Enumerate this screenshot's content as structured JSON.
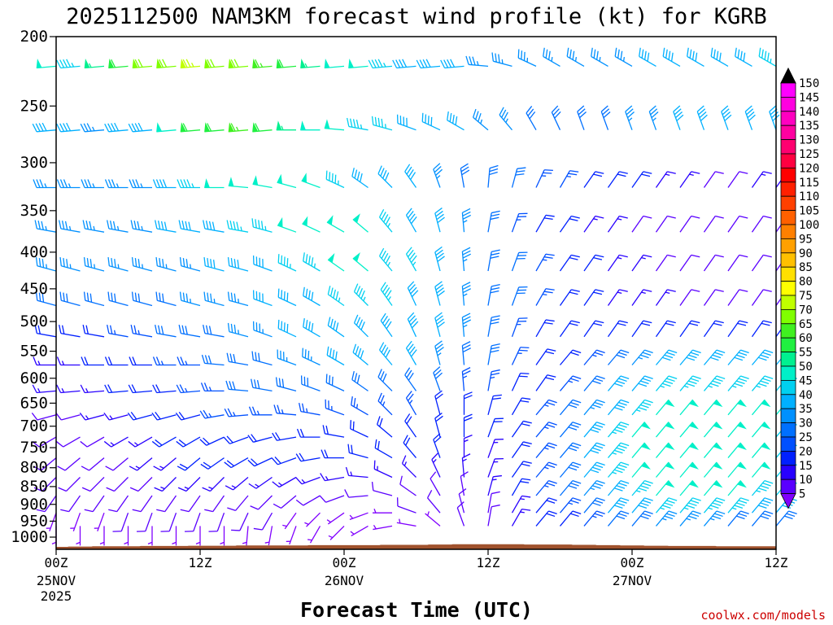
{
  "chart_data": {
    "type": "wind-barb time-height section",
    "title": "2025112500 NAM3KM forecast wind profile (kt) for KGRB",
    "xlabel": "Forecast Time (UTC)",
    "ylabel": "",
    "x_range_hours": [
      0,
      60
    ],
    "y_axis": {
      "scale": "log-pressure",
      "range_hPa": [
        1040,
        200
      ],
      "tick_values": [
        200,
        250,
        300,
        350,
        400,
        450,
        500,
        550,
        600,
        650,
        700,
        750,
        800,
        850,
        900,
        950,
        1000
      ],
      "tick_labels": [
        "200",
        "250",
        "300",
        "350",
        "400",
        "450",
        "500",
        "550",
        "600",
        "650",
        "700",
        "750",
        "800",
        "850",
        "900",
        "950",
        "1000"
      ]
    },
    "x_ticks": [
      {
        "hour": 0,
        "label": "00Z",
        "sub1": "25NOV",
        "sub2": "2025"
      },
      {
        "hour": 12,
        "label": "12Z",
        "sub1": "",
        "sub2": ""
      },
      {
        "hour": 24,
        "label": "00Z",
        "sub1": "26NOV",
        "sub2": ""
      },
      {
        "hour": 36,
        "label": "12Z",
        "sub1": "",
        "sub2": ""
      },
      {
        "hour": 48,
        "label": "00Z",
        "sub1": "27NOV",
        "sub2": ""
      },
      {
        "hour": 60,
        "label": "12Z",
        "sub1": "",
        "sub2": ""
      }
    ],
    "levels_hPa": [
      220,
      270,
      325,
      375,
      425,
      475,
      525,
      575,
      625,
      675,
      725,
      775,
      825,
      875,
      925,
      965
    ],
    "lead_hours": [
      0,
      2,
      4,
      6,
      8,
      10,
      12,
      14,
      16,
      18,
      20,
      22,
      24,
      26,
      28,
      30,
      32,
      34,
      36,
      38,
      40,
      42,
      44,
      46,
      48,
      50,
      52,
      54,
      56,
      58,
      60
    ],
    "wind_speed_kt": [
      [
        48,
        45,
        55,
        62,
        68,
        72,
        74,
        72,
        68,
        64,
        60,
        56,
        52,
        48,
        44,
        42,
        40,
        38,
        36,
        36,
        36,
        36,
        36,
        36,
        36,
        38,
        40,
        40,
        40,
        42,
        44
      ],
      [
        40,
        38,
        36,
        38,
        42,
        50,
        58,
        62,
        64,
        60,
        56,
        52,
        48,
        46,
        44,
        42,
        40,
        38,
        36,
        34,
        32,
        30,
        30,
        32,
        34,
        36,
        38,
        38,
        38,
        38,
        38
      ],
      [
        36,
        35,
        34,
        34,
        36,
        40,
        46,
        50,
        52,
        52,
        50,
        48,
        46,
        42,
        40,
        38,
        35,
        32,
        30,
        28,
        26,
        24,
        22,
        20,
        18,
        16,
        14,
        12,
        12,
        14,
        16
      ],
      [
        35,
        34,
        34,
        34,
        36,
        38,
        40,
        42,
        44,
        46,
        48,
        50,
        50,
        48,
        46,
        42,
        38,
        34,
        30,
        26,
        22,
        18,
        16,
        14,
        12,
        10,
        10,
        10,
        12,
        12,
        12
      ],
      [
        34,
        34,
        33,
        33,
        34,
        35,
        36,
        38,
        40,
        42,
        44,
        46,
        48,
        48,
        46,
        44,
        40,
        36,
        32,
        28,
        24,
        20,
        18,
        16,
        14,
        12,
        10,
        10,
        10,
        10,
        10
      ],
      [
        30,
        30,
        30,
        30,
        31,
        32,
        33,
        34,
        36,
        38,
        40,
        42,
        44,
        44,
        44,
        42,
        40,
        36,
        32,
        28,
        24,
        20,
        18,
        16,
        16,
        14,
        12,
        12,
        12,
        12,
        12
      ],
      [
        18,
        20,
        22,
        24,
        26,
        28,
        30,
        32,
        34,
        36,
        38,
        40,
        42,
        42,
        42,
        40,
        38,
        34,
        30,
        26,
        22,
        18,
        18,
        18,
        18,
        18,
        18,
        18,
        18,
        18,
        18
      ],
      [
        16,
        16,
        18,
        20,
        22,
        24,
        26,
        28,
        30,
        32,
        34,
        36,
        38,
        40,
        40,
        38,
        36,
        32,
        28,
        24,
        20,
        20,
        24,
        30,
        34,
        38,
        40,
        42,
        42,
        42,
        42
      ],
      [
        14,
        14,
        16,
        18,
        20,
        22,
        24,
        26,
        28,
        30,
        32,
        32,
        32,
        32,
        32,
        30,
        28,
        26,
        24,
        22,
        20,
        26,
        32,
        38,
        42,
        44,
        46,
        46,
        46,
        46,
        46
      ],
      [
        12,
        12,
        14,
        16,
        18,
        20,
        22,
        24,
        26,
        26,
        26,
        26,
        26,
        26,
        26,
        24,
        22,
        20,
        18,
        20,
        24,
        30,
        36,
        42,
        46,
        48,
        50,
        50,
        50,
        48,
        48
      ],
      [
        12,
        12,
        12,
        14,
        16,
        18,
        20,
        22,
        22,
        22,
        22,
        22,
        22,
        22,
        22,
        22,
        20,
        18,
        18,
        20,
        24,
        30,
        38,
        44,
        48,
        50,
        52,
        52,
        50,
        48,
        46
      ],
      [
        10,
        10,
        10,
        12,
        14,
        16,
        18,
        18,
        18,
        18,
        18,
        18,
        18,
        18,
        18,
        18,
        18,
        16,
        16,
        20,
        26,
        32,
        38,
        44,
        48,
        50,
        52,
        52,
        50,
        48,
        46
      ],
      [
        10,
        10,
        10,
        10,
        12,
        14,
        16,
        16,
        16,
        14,
        14,
        14,
        14,
        14,
        14,
        14,
        14,
        14,
        16,
        20,
        26,
        32,
        38,
        44,
        48,
        50,
        52,
        52,
        50,
        48,
        46
      ],
      [
        8,
        8,
        8,
        10,
        10,
        12,
        12,
        12,
        12,
        10,
        10,
        10,
        10,
        10,
        10,
        10,
        12,
        12,
        14,
        18,
        24,
        30,
        36,
        42,
        46,
        48,
        50,
        50,
        48,
        46,
        44
      ],
      [
        6,
        6,
        6,
        8,
        8,
        8,
        8,
        8,
        8,
        8,
        6,
        6,
        6,
        6,
        6,
        8,
        8,
        10,
        12,
        16,
        20,
        26,
        32,
        38,
        42,
        44,
        46,
        46,
        44,
        42,
        40
      ],
      [
        4,
        4,
        4,
        6,
        6,
        6,
        6,
        6,
        6,
        6,
        6,
        4,
        4,
        4,
        4,
        6,
        6,
        8,
        10,
        14,
        18,
        22,
        26,
        30,
        32,
        34,
        34,
        34,
        32,
        30,
        30
      ]
    ],
    "wind_dir_deg": [
      [
        265,
        265,
        265,
        265,
        265,
        265,
        265,
        265,
        265,
        265,
        265,
        265,
        265,
        265,
        265,
        265,
        265,
        265,
        275,
        285,
        295,
        300,
        300,
        300,
        300,
        300,
        300,
        300,
        300,
        300,
        300
      ],
      [
        265,
        265,
        265,
        265,
        265,
        265,
        265,
        265,
        265,
        265,
        270,
        270,
        275,
        280,
        285,
        290,
        295,
        300,
        310,
        320,
        330,
        335,
        340,
        340,
        340,
        340,
        340,
        340,
        340,
        340,
        340
      ],
      [
        270,
        270,
        270,
        270,
        270,
        270,
        270,
        270,
        275,
        280,
        285,
        290,
        295,
        305,
        315,
        325,
        340,
        350,
        5,
        15,
        25,
        30,
        35,
        35,
        35,
        35,
        35,
        35,
        35,
        35,
        35
      ],
      [
        280,
        280,
        280,
        280,
        280,
        280,
        280,
        280,
        280,
        285,
        290,
        295,
        300,
        310,
        320,
        330,
        345,
        355,
        10,
        20,
        30,
        35,
        35,
        35,
        35,
        35,
        35,
        35,
        35,
        35,
        35
      ],
      [
        285,
        285,
        285,
        285,
        285,
        285,
        285,
        285,
        285,
        290,
        295,
        300,
        305,
        310,
        320,
        330,
        345,
        355,
        10,
        20,
        30,
        35,
        35,
        35,
        35,
        35,
        35,
        35,
        35,
        35,
        35
      ],
      [
        285,
        285,
        285,
        285,
        285,
        285,
        285,
        285,
        285,
        290,
        295,
        300,
        305,
        315,
        325,
        335,
        345,
        355,
        10,
        20,
        30,
        35,
        35,
        35,
        35,
        35,
        35,
        35,
        35,
        35,
        35
      ],
      [
        280,
        280,
        280,
        280,
        280,
        280,
        280,
        280,
        285,
        290,
        295,
        300,
        305,
        315,
        325,
        335,
        345,
        355,
        10,
        20,
        30,
        35,
        35,
        35,
        35,
        35,
        35,
        35,
        35,
        35,
        35
      ],
      [
        270,
        270,
        270,
        270,
        270,
        270,
        270,
        275,
        280,
        285,
        290,
        295,
        300,
        310,
        320,
        330,
        345,
        355,
        10,
        25,
        35,
        40,
        40,
        40,
        40,
        40,
        40,
        40,
        40,
        40,
        40
      ],
      [
        265,
        265,
        265,
        265,
        265,
        265,
        265,
        270,
        275,
        280,
        285,
        290,
        295,
        305,
        315,
        325,
        340,
        355,
        10,
        25,
        35,
        40,
        40,
        40,
        40,
        40,
        40,
        40,
        40,
        40,
        40
      ],
      [
        255,
        255,
        255,
        255,
        255,
        255,
        255,
        260,
        265,
        270,
        275,
        280,
        290,
        300,
        315,
        330,
        345,
        0,
        15,
        30,
        40,
        40,
        40,
        40,
        40,
        40,
        40,
        40,
        40,
        40,
        40
      ],
      [
        240,
        240,
        240,
        240,
        240,
        240,
        240,
        245,
        250,
        255,
        260,
        270,
        280,
        295,
        310,
        325,
        345,
        0,
        20,
        35,
        40,
        40,
        40,
        40,
        40,
        40,
        40,
        40,
        40,
        40,
        40
      ],
      [
        230,
        230,
        230,
        230,
        230,
        230,
        230,
        235,
        240,
        245,
        250,
        260,
        270,
        285,
        300,
        320,
        340,
        0,
        20,
        35,
        40,
        40,
        40,
        40,
        40,
        40,
        40,
        40,
        40,
        40,
        40
      ],
      [
        225,
        225,
        225,
        225,
        225,
        225,
        225,
        225,
        230,
        235,
        240,
        250,
        260,
        275,
        295,
        315,
        335,
        355,
        20,
        35,
        40,
        40,
        40,
        40,
        40,
        40,
        40,
        40,
        40,
        40,
        40
      ],
      [
        215,
        215,
        215,
        215,
        215,
        215,
        215,
        215,
        220,
        225,
        230,
        240,
        250,
        265,
        285,
        305,
        330,
        350,
        15,
        30,
        40,
        40,
        40,
        40,
        40,
        40,
        40,
        40,
        40,
        40,
        40
      ],
      [
        200,
        200,
        200,
        200,
        200,
        200,
        200,
        200,
        205,
        210,
        215,
        225,
        235,
        250,
        270,
        290,
        320,
        345,
        10,
        30,
        40,
        40,
        40,
        40,
        40,
        40,
        40,
        40,
        40,
        40,
        40
      ],
      [
        180,
        180,
        180,
        180,
        180,
        180,
        180,
        180,
        185,
        190,
        200,
        210,
        225,
        240,
        260,
        280,
        310,
        340,
        10,
        30,
        40,
        40,
        40,
        40,
        40,
        40,
        40,
        40,
        40,
        40,
        40
      ]
    ],
    "surface_pressure_hPa": [
      1032,
      1031,
      1030,
      1030,
      1029,
      1029,
      1028,
      1028,
      1027,
      1027,
      1027,
      1026,
      1026,
      1026,
      1025,
      1025,
      1024,
      1023,
      1023,
      1023,
      1024,
      1024,
      1025,
      1026,
      1027,
      1028,
      1029,
      1029,
      1030,
      1030,
      1030
    ],
    "surface_color": "#a0522d",
    "colorbar": {
      "ticks": [
        5,
        10,
        15,
        20,
        25,
        30,
        35,
        40,
        45,
        50,
        55,
        60,
        65,
        70,
        75,
        80,
        85,
        90,
        95,
        100,
        105,
        110,
        115,
        120,
        125,
        130,
        135,
        140,
        145,
        150
      ],
      "colors": [
        "#8000ff",
        "#5a00ff",
        "#2800ff",
        "#0020ff",
        "#0050ff",
        "#0070ff",
        "#0090ff",
        "#00b0ff",
        "#00d0f0",
        "#00f0c8",
        "#00f090",
        "#20f040",
        "#40f020",
        "#80ff00",
        "#c0ff00",
        "#ffff00",
        "#ffe000",
        "#ffc000",
        "#ffa000",
        "#ff8000",
        "#ff6000",
        "#ff4000",
        "#ff2000",
        "#ff0000",
        "#ff0040",
        "#ff0070",
        "#ff00a0",
        "#ff00c0",
        "#ff00e0",
        "#ff00ff"
      ]
    }
  },
  "credit": "coolwx.com/models"
}
